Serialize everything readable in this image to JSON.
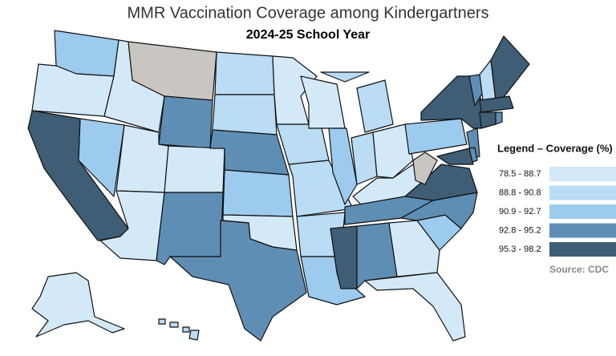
{
  "title": "MMR Vaccination Coverage among Kindergartners",
  "subtitle": "2024-25 School Year",
  "legend": {
    "title": "Legend – Coverage (%)",
    "items": [
      {
        "label": "78.5 - 88.7",
        "color": "#d4e9f8"
      },
      {
        "label": "88.8 - 90.8",
        "color": "#badcf4"
      },
      {
        "label": "90.9 - 92.7",
        "color": "#9dcbee"
      },
      {
        "label": "92.8 - 95.2",
        "color": "#5f8eb5"
      },
      {
        "label": "95.3 - 98.2",
        "color": "#3f5d74"
      }
    ],
    "no_data_color": "#c9c6c2"
  },
  "source": "Source: CDC"
}
